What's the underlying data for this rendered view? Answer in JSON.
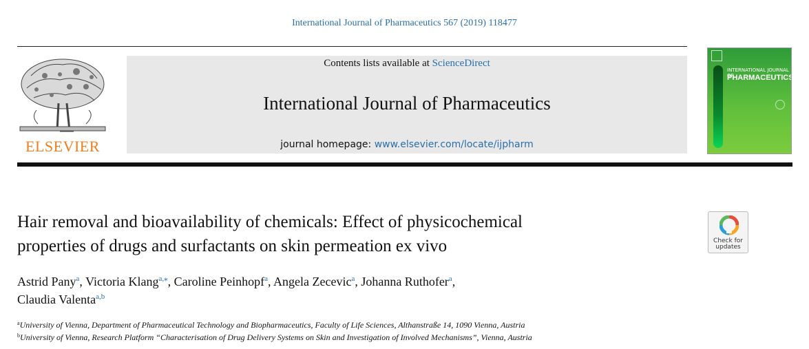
{
  "running_head": "International Journal of Pharmaceutics 567 (2019) 118477",
  "publisher": {
    "name": "ELSEVIER",
    "logo_icon": "elsevier-tree-icon"
  },
  "banner": {
    "contents_prefix": "Contents lists available at ",
    "contents_link": "ScienceDirect",
    "journal_name": "International Journal of Pharmaceutics",
    "homepage_prefix": "journal homepage: ",
    "homepage_link": "www.elsevier.com/locate/ijpharm"
  },
  "cover": {
    "title_line1": "INTERNATIONAL JOURNAL OF",
    "title_line2": "PHARMACEUTICS"
  },
  "article": {
    "title_line1": "Hair removal and bioavailability of chemicals: Effect of physicochemical",
    "title_line2": "properties of drugs and surfactants on skin permeation ex vivo"
  },
  "badge": {
    "line1": "Check for",
    "line2": "updates",
    "icon": "check-for-updates-icon"
  },
  "authors": [
    {
      "name": "Astrid Pany",
      "sup": "a",
      "sep": ", "
    },
    {
      "name": "Victoria Klang",
      "sup": "a,⁎",
      "sep": ", "
    },
    {
      "name": "Caroline Peinhopf",
      "sup": "a",
      "sep": ", "
    },
    {
      "name": "Angela Zecevic",
      "sup": "a",
      "sep": ", "
    },
    {
      "name": "Johanna Ruthofer",
      "sup": "a",
      "sep": ","
    },
    {
      "name": "Claudia Valenta",
      "sup": "a,b",
      "sep": ""
    }
  ],
  "affiliations": [
    {
      "sup": "a",
      "text": "University of Vienna, Department of Pharmaceutical Technology and Biopharmaceutics, Faculty of Life Sciences, Althanstraße 14, 1090 Vienna, Austria"
    },
    {
      "sup": "b",
      "text": "University of Vienna, Research Platform “Characterisation of Drug Delivery Systems on Skin and Investigation of Involved Mechanisms”, Vienna, Austria"
    }
  ],
  "colors": {
    "link": "#2a6fa8",
    "elsevier_orange": "#f07d1d",
    "cover_green": "#5fbf3c"
  }
}
